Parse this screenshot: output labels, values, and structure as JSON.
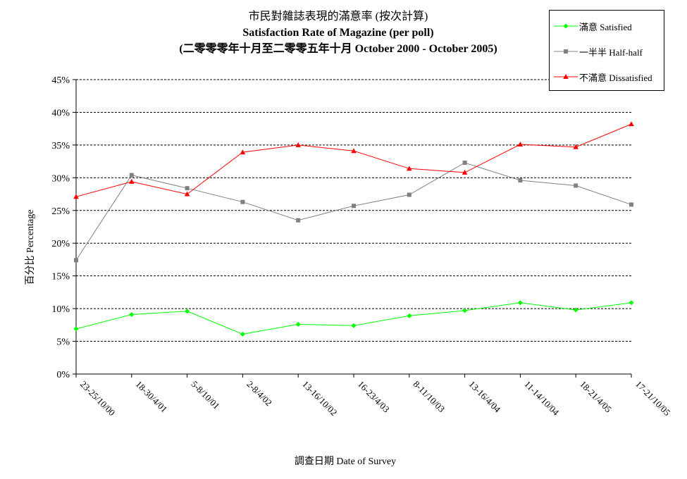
{
  "title": {
    "line1": "市民對雜誌表現的滿意率 (按次計算)",
    "line2": "Satisfaction Rate of Magazine (per poll)",
    "line3": "(二零零零年十月至二零零五年十月 October 2000 - October 2005)"
  },
  "chart_data": {
    "type": "line",
    "title": "市民對雜誌表現的滿意率 (按次計算) / Satisfaction Rate of Magazine (per poll)",
    "subtitle": "(二零零零年十月至二零零五年十月 October 2000 - October 2005)",
    "xlabel": "調查日期 Date of Survey",
    "ylabel": "百分比 Percentage",
    "ylim": [
      0,
      45
    ],
    "yticks": [
      "0%",
      "5%",
      "10%",
      "15%",
      "20%",
      "25%",
      "30%",
      "35%",
      "40%",
      "45%"
    ],
    "ytick_values": [
      0,
      5,
      10,
      15,
      20,
      25,
      30,
      35,
      40,
      45
    ],
    "grid": "horizontal dashed",
    "legend_position": "top-right",
    "categories": [
      "23-25/10/00",
      "18-30/4/01",
      "5-8/10/01",
      "2-8/4/02",
      "13-16/10/02",
      "16-23/4/03",
      "8-11/10/03",
      "13-16/4/04",
      "11-14/10/04",
      "18-21/4/05",
      "17-21/10/05"
    ],
    "series": [
      {
        "name": "滿意 Satisfied",
        "color": "#00ff00",
        "marker": "diamond",
        "values": [
          6.9,
          9.1,
          9.6,
          6.1,
          7.6,
          7.4,
          8.9,
          9.7,
          10.9,
          9.8,
          10.9
        ]
      },
      {
        "name": "一半半 Half-half",
        "color": "#808080",
        "marker": "square",
        "values": [
          17.4,
          30.4,
          28.4,
          26.3,
          23.5,
          25.7,
          27.4,
          32.3,
          29.6,
          28.8,
          25.9
        ]
      },
      {
        "name": "不滿意 Dissatisfied",
        "color": "#ff0000",
        "marker": "triangle",
        "values": [
          27.1,
          29.4,
          27.5,
          33.9,
          35.0,
          34.1,
          31.4,
          30.8,
          35.1,
          34.7,
          38.2
        ]
      }
    ]
  }
}
